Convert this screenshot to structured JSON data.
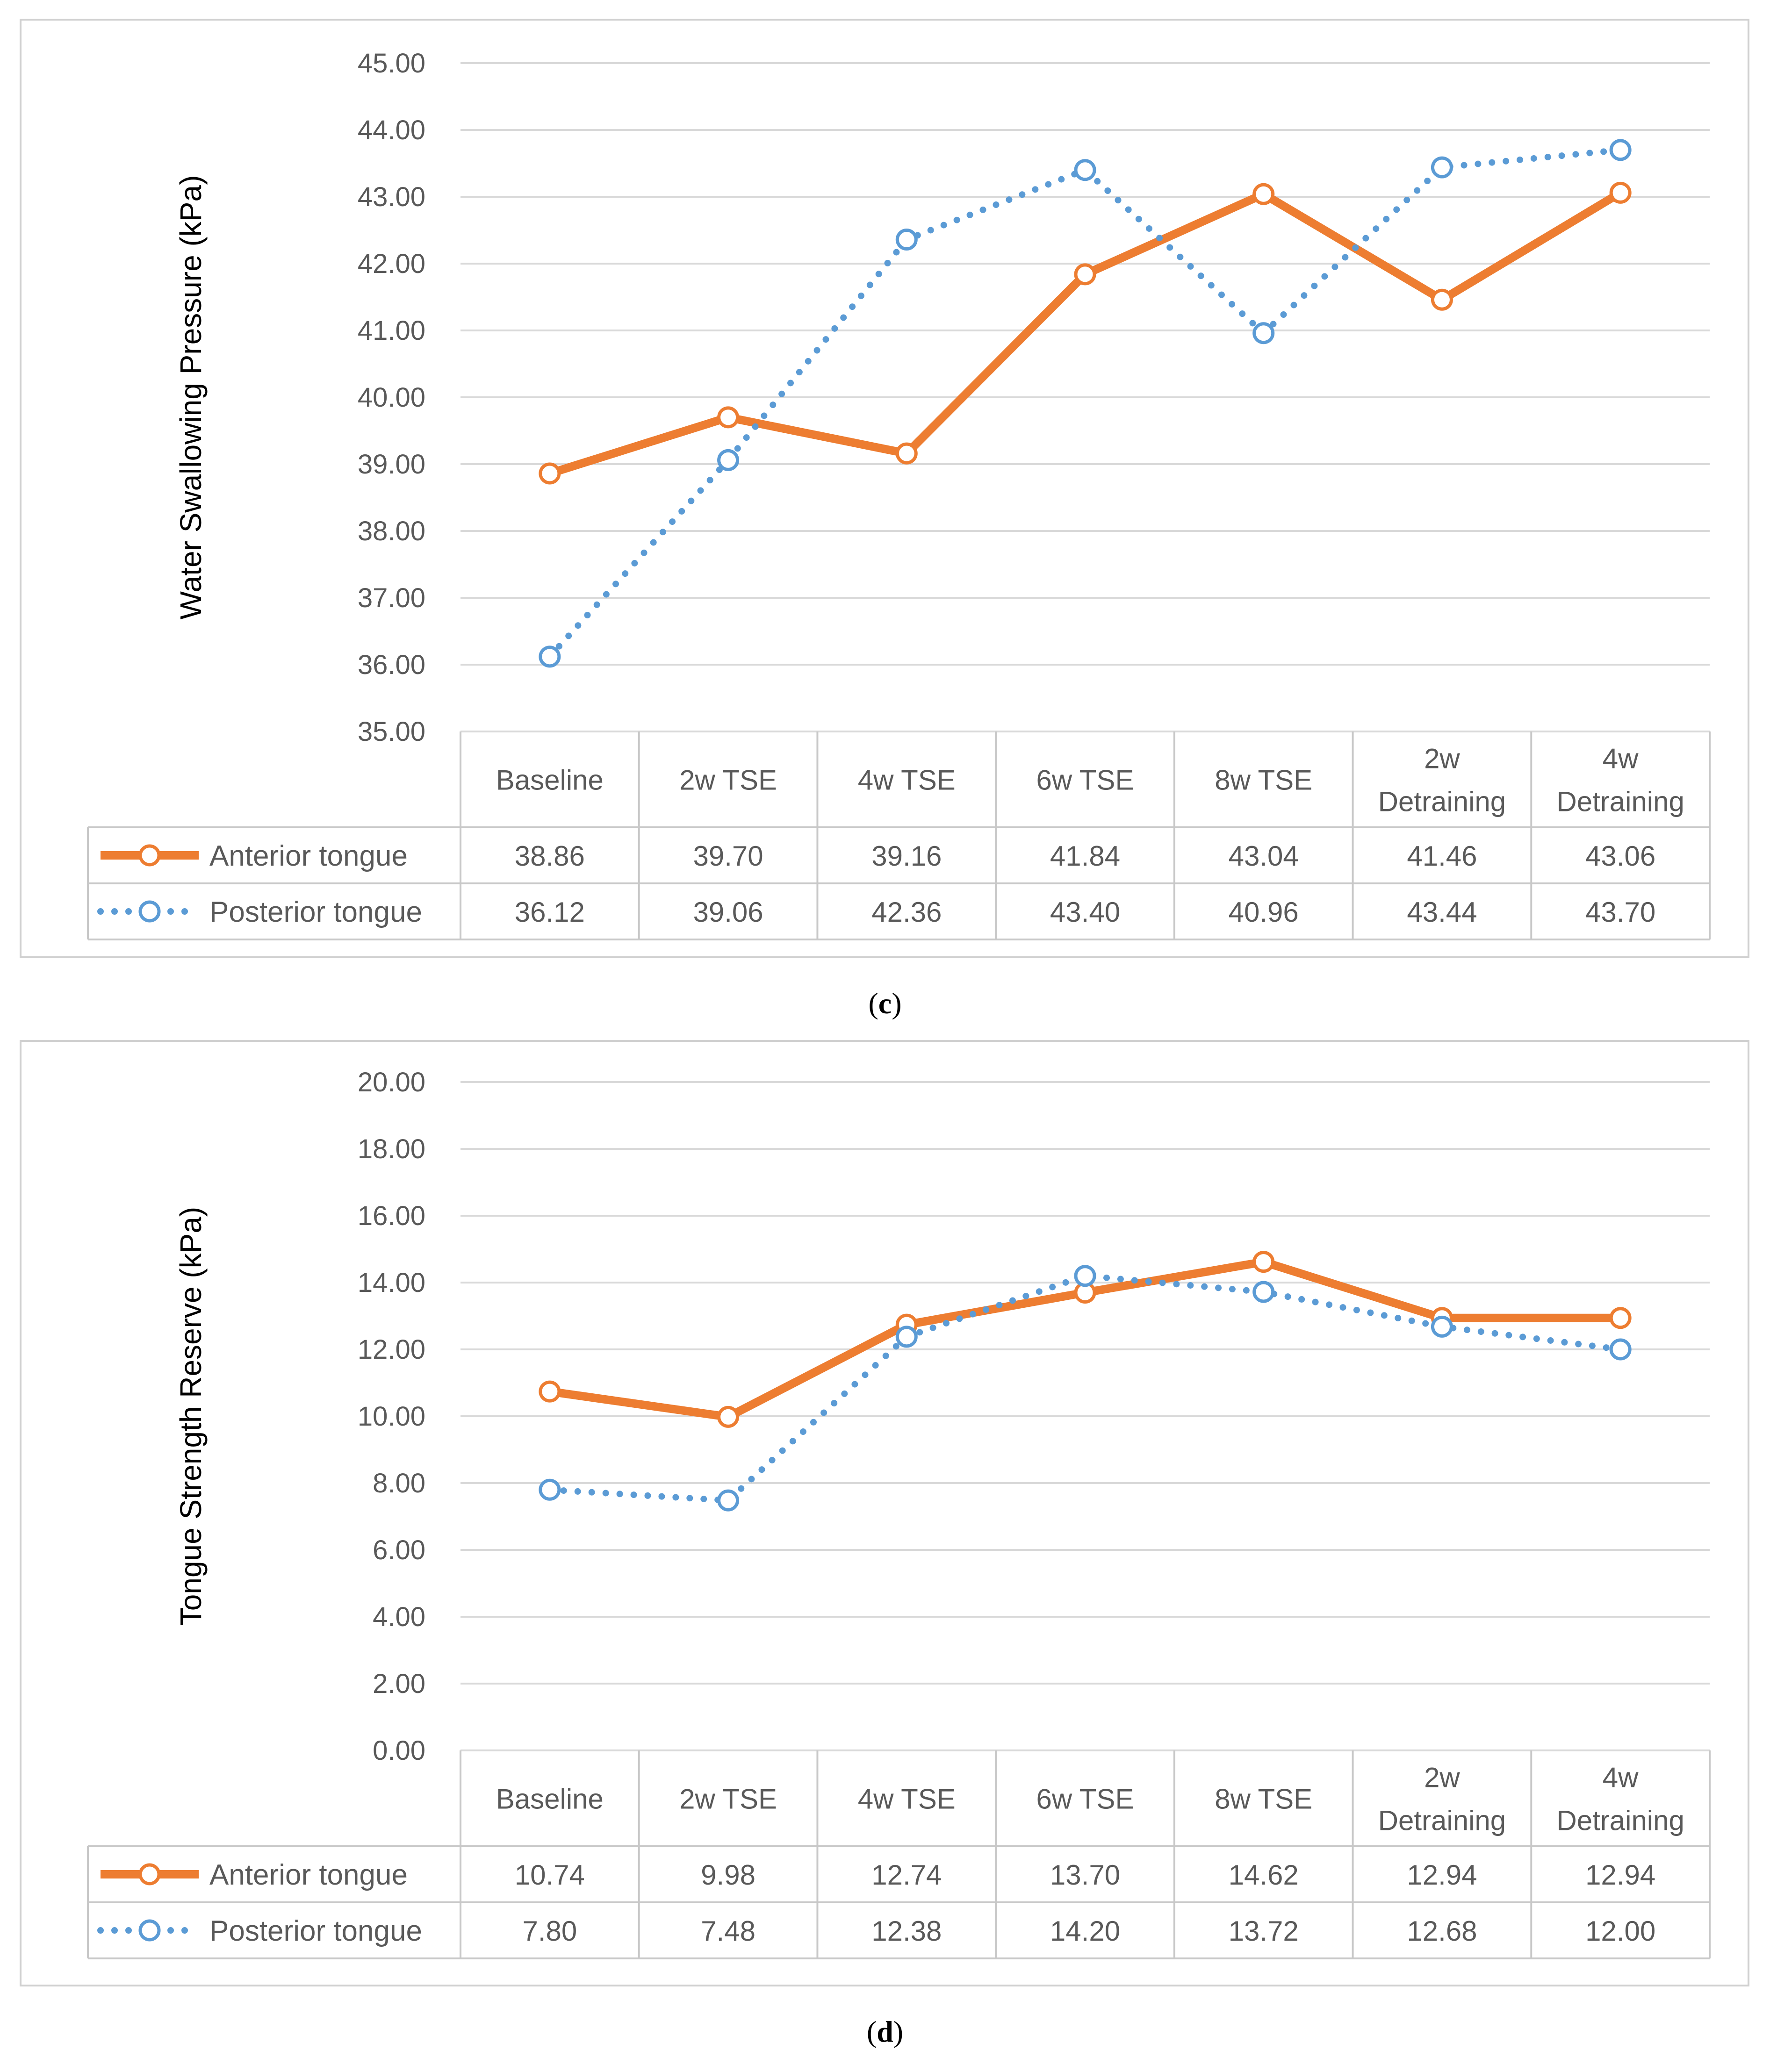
{
  "chart_data": [
    {
      "type": "line",
      "panel_label": "c",
      "ylabel": "Water Swallowing Pressure (kPa)",
      "xlabel": "",
      "ylim": [
        35,
        45
      ],
      "ystep": 1,
      "grid": true,
      "legend": "data-table",
      "categories": [
        "Baseline",
        "2w TSE",
        "4w TSE",
        "6w TSE",
        "8w TSE",
        "2w\nDetraining",
        "4w\nDetraining"
      ],
      "series": [
        {
          "name": "Anterior tongue",
          "color": "#ed7d31",
          "style": "solid",
          "values": [
            38.86,
            39.7,
            39.16,
            41.84,
            43.04,
            41.46,
            43.06
          ],
          "labels": [
            "38.86",
            "39.70",
            "39.16",
            "41.84",
            "43.04",
            "41.46",
            "43.06"
          ]
        },
        {
          "name": "Posterior tongue",
          "color": "#5b9bd5",
          "style": "dotted",
          "values": [
            36.12,
            39.06,
            42.36,
            43.4,
            40.96,
            43.44,
            43.7
          ],
          "labels": [
            "36.12",
            "39.06",
            "42.36",
            "43.40",
            "40.96",
            "43.44",
            "43.70"
          ]
        }
      ]
    },
    {
      "type": "line",
      "panel_label": "d",
      "ylabel": "Tongue Strength Reserve (kPa)",
      "xlabel": "",
      "ylim": [
        0,
        20
      ],
      "ystep": 2,
      "grid": true,
      "legend": "data-table",
      "categories": [
        "Baseline",
        "2w TSE",
        "4w TSE",
        "6w TSE",
        "8w TSE",
        "2w\nDetraining",
        "4w\nDetraining"
      ],
      "series": [
        {
          "name": "Anterior tongue",
          "color": "#ed7d31",
          "style": "solid",
          "values": [
            10.74,
            9.98,
            12.74,
            13.7,
            14.62,
            12.94,
            12.94
          ],
          "labels": [
            "10.74",
            "9.98",
            "12.74",
            "13.70",
            "14.62",
            "12.94",
            "12.94"
          ]
        },
        {
          "name": "Posterior tongue",
          "color": "#5b9bd5",
          "style": "dotted",
          "values": [
            7.8,
            7.48,
            12.38,
            14.2,
            13.72,
            12.68,
            12.0
          ],
          "labels": [
            "7.80",
            "7.48",
            "12.38",
            "14.20",
            "13.72",
            "12.68",
            "12.00"
          ]
        }
      ]
    }
  ]
}
